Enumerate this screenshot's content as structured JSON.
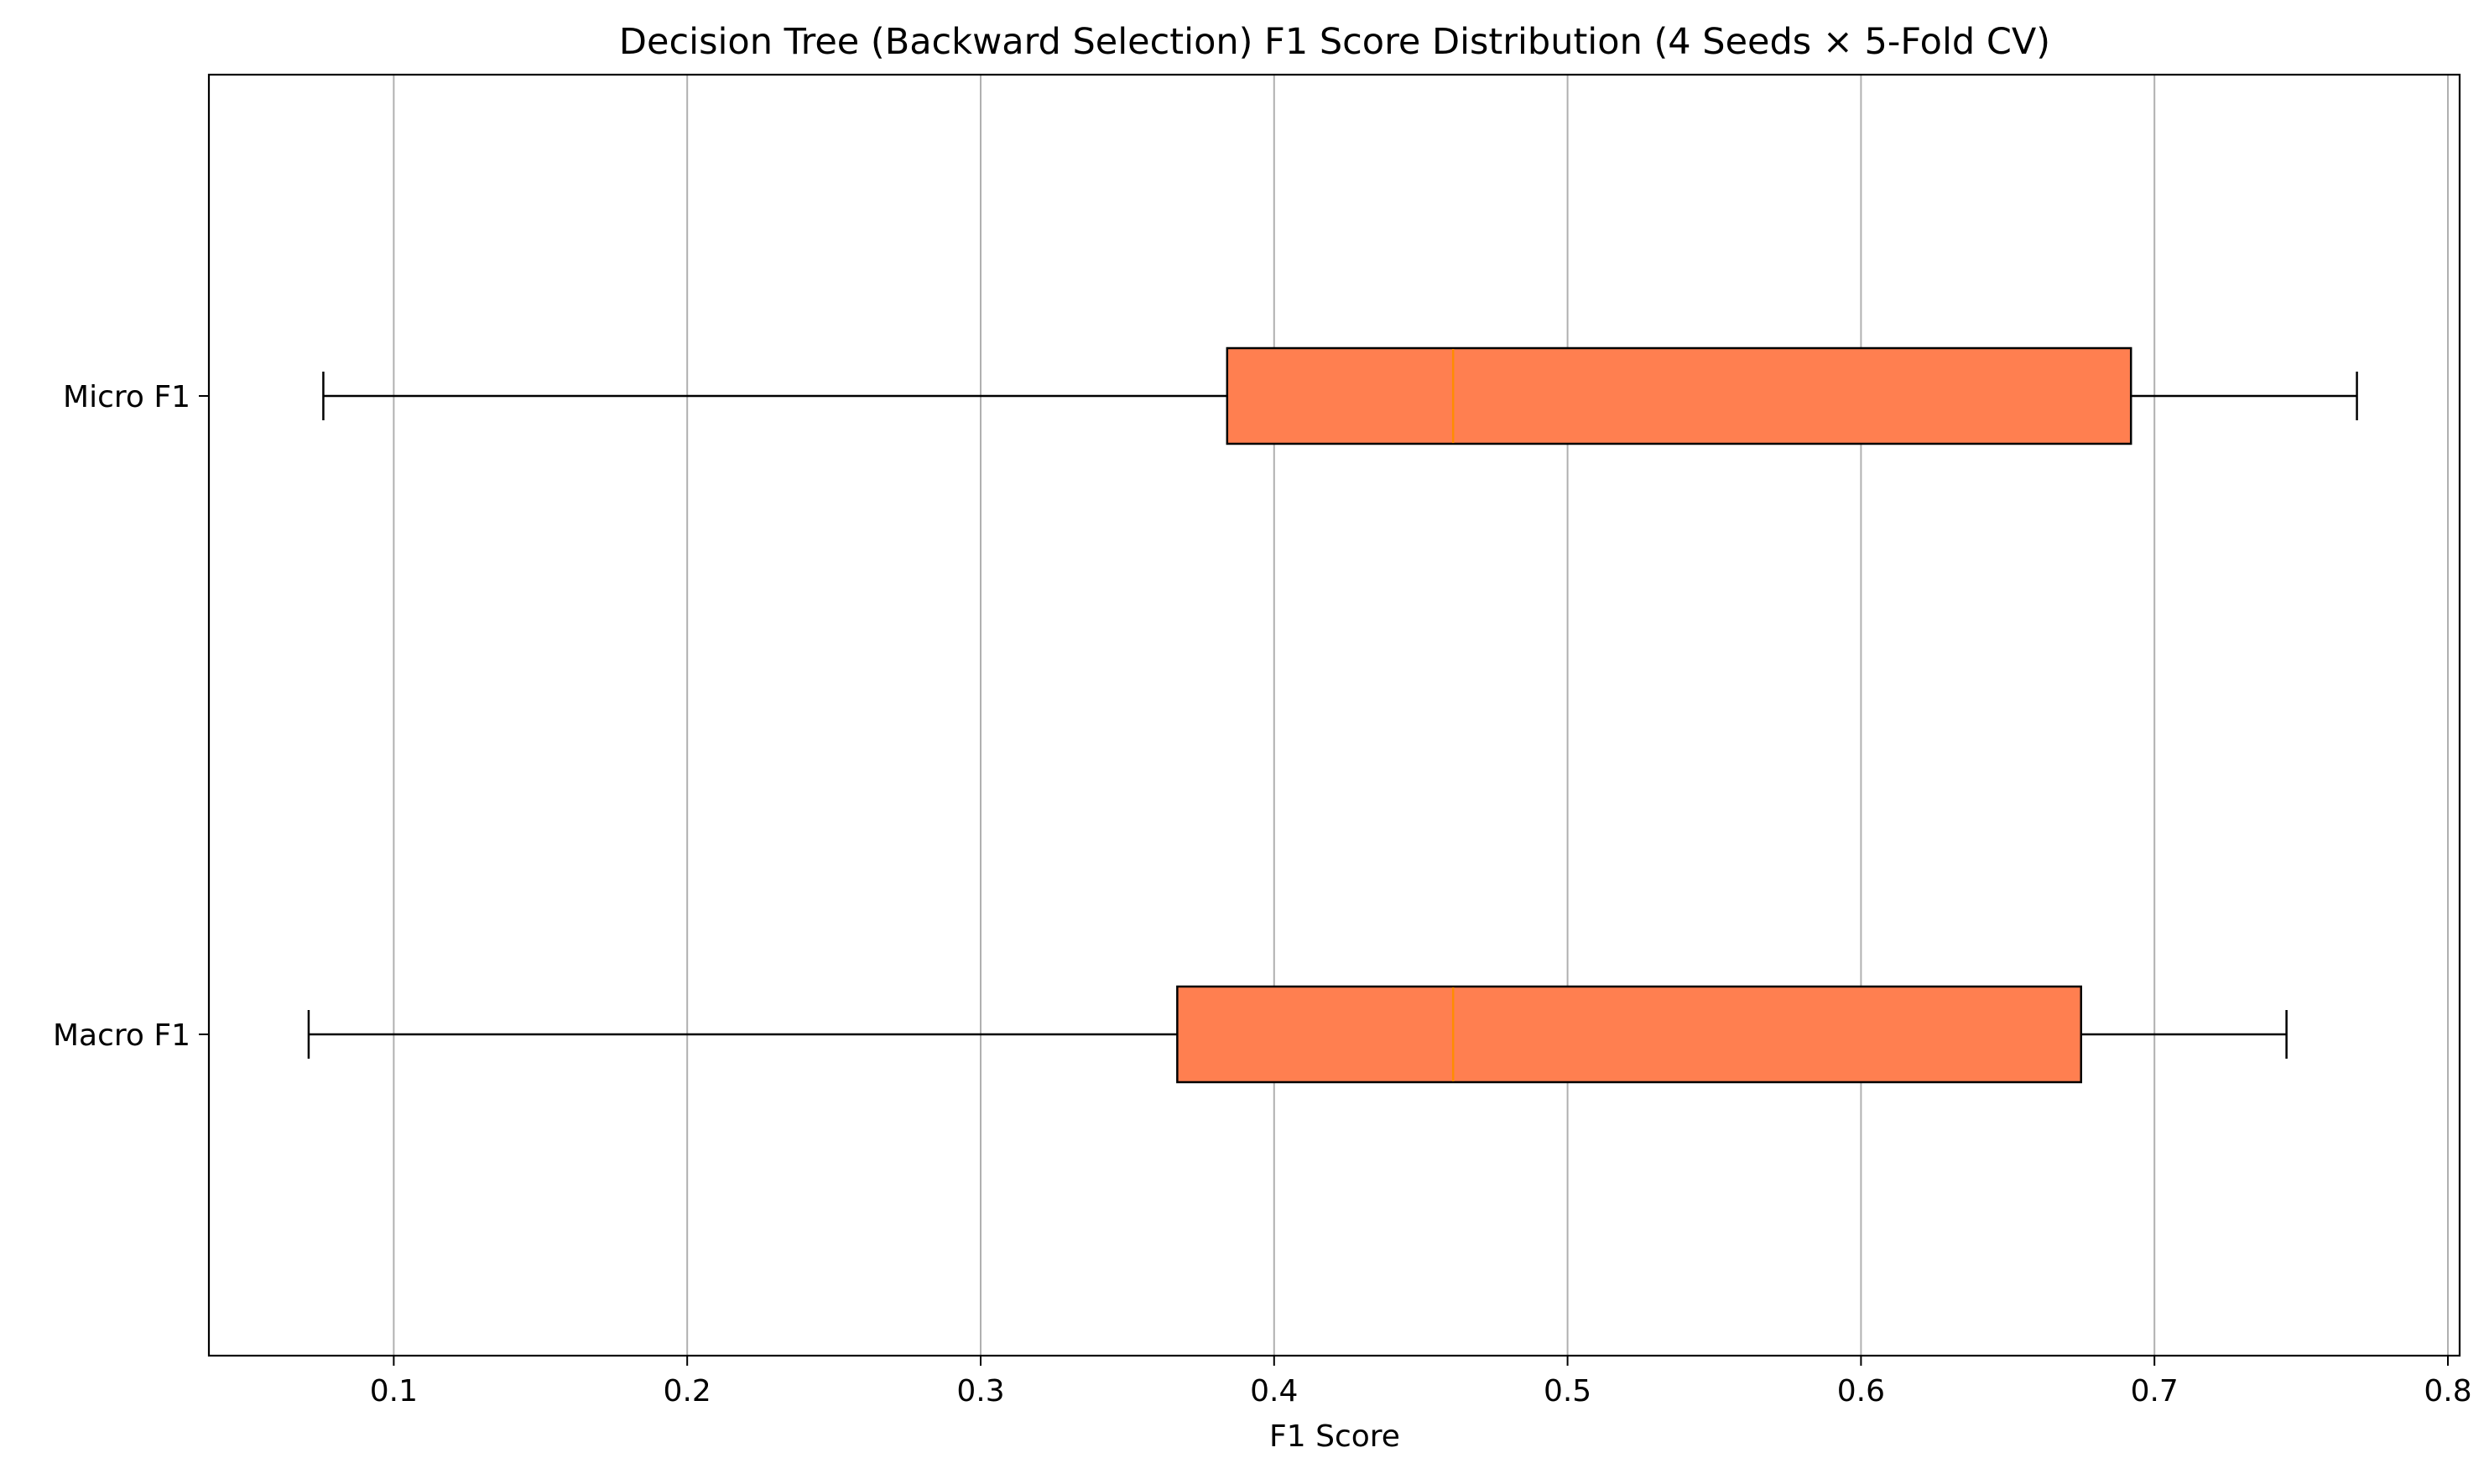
{
  "chart_data": {
    "type": "boxplot",
    "orientation": "horizontal",
    "title": "Decision Tree (Backward Selection) F1 Score Distribution (4 Seeds × 5-Fold CV)",
    "xlabel": "F1 Score",
    "ylabel": "",
    "xlim": [
      0.037,
      0.804
    ],
    "xticks": [
      0.1,
      0.2,
      0.3,
      0.4,
      0.5,
      0.6,
      0.7,
      0.8
    ],
    "xtick_labels": [
      "0.1",
      "0.2",
      "0.3",
      "0.4",
      "0.5",
      "0.6",
      "0.7",
      "0.8"
    ],
    "grid": "vertical",
    "box_color": "#ff7f50",
    "median_color": "#ff8c00",
    "series": [
      {
        "name": "Micro F1",
        "whisker_low": 0.076,
        "q1": 0.384,
        "median": 0.461,
        "q3": 0.692,
        "whisker_high": 0.769
      },
      {
        "name": "Macro F1",
        "whisker_low": 0.071,
        "q1": 0.367,
        "median": 0.461,
        "q3": 0.675,
        "whisker_high": 0.745
      }
    ]
  }
}
